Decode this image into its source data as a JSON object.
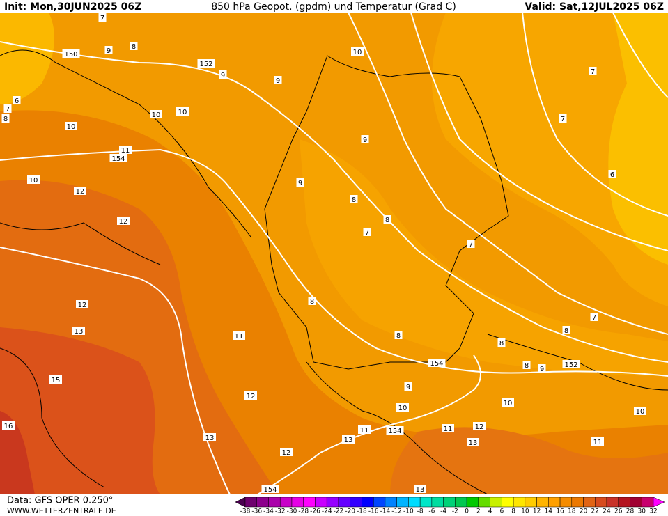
{
  "header": {
    "init": "Init: Mon,30JUN2025 06Z",
    "title": "850 hPa Geopot. (gpdm) und Temperatur (Grad C)",
    "valid": "Valid: Sat,12JUL2025 06Z"
  },
  "map": {
    "contour_labels": [
      7,
      150,
      9,
      8,
      152,
      9,
      9,
      10,
      7,
      6,
      7,
      8,
      10,
      10,
      10,
      9,
      7,
      11,
      154,
      10,
      6,
      12,
      9,
      8,
      12,
      8,
      7,
      7,
      12,
      8,
      7,
      13,
      11,
      8,
      8,
      8,
      154,
      8,
      9,
      152,
      15,
      9,
      10,
      10,
      10,
      12,
      16,
      11,
      154,
      11,
      12,
      13,
      13,
      13,
      11,
      12,
      154,
      13
    ]
  },
  "legend": {
    "ticks": [
      -38,
      -36,
      -34,
      -32,
      -30,
      -28,
      -26,
      -24,
      -22,
      -20,
      -18,
      -16,
      -14,
      -12,
      -10,
      -8,
      -6,
      -4,
      -2,
      0,
      2,
      4,
      6,
      8,
      10,
      12,
      14,
      16,
      18,
      20,
      22,
      24,
      26,
      28,
      30,
      32
    ],
    "colors": [
      "#4b0050",
      "#6e006e",
      "#8c008c",
      "#aa00aa",
      "#c800c8",
      "#e600e6",
      "#ff00ff",
      "#c800ff",
      "#9600ff",
      "#6400ff",
      "#3200ff",
      "#0000ff",
      "#0046ff",
      "#0082ff",
      "#00b4ff",
      "#00dcff",
      "#00e6c8",
      "#00dca0",
      "#00d278",
      "#00c850",
      "#00c800",
      "#64dc00",
      "#c8f000",
      "#ffff00",
      "#ffe600",
      "#ffcc00",
      "#ffb400",
      "#ffa000",
      "#f58c00",
      "#eb7800",
      "#e16414",
      "#d74b1e",
      "#c83228",
      "#b4141e",
      "#a00032",
      "#c8006e",
      "#ff00ff"
    ]
  },
  "footer": {
    "data": "Data: GFS OPER 0.250°",
    "site": "WWW.WETTERZENTRALE.DE"
  }
}
